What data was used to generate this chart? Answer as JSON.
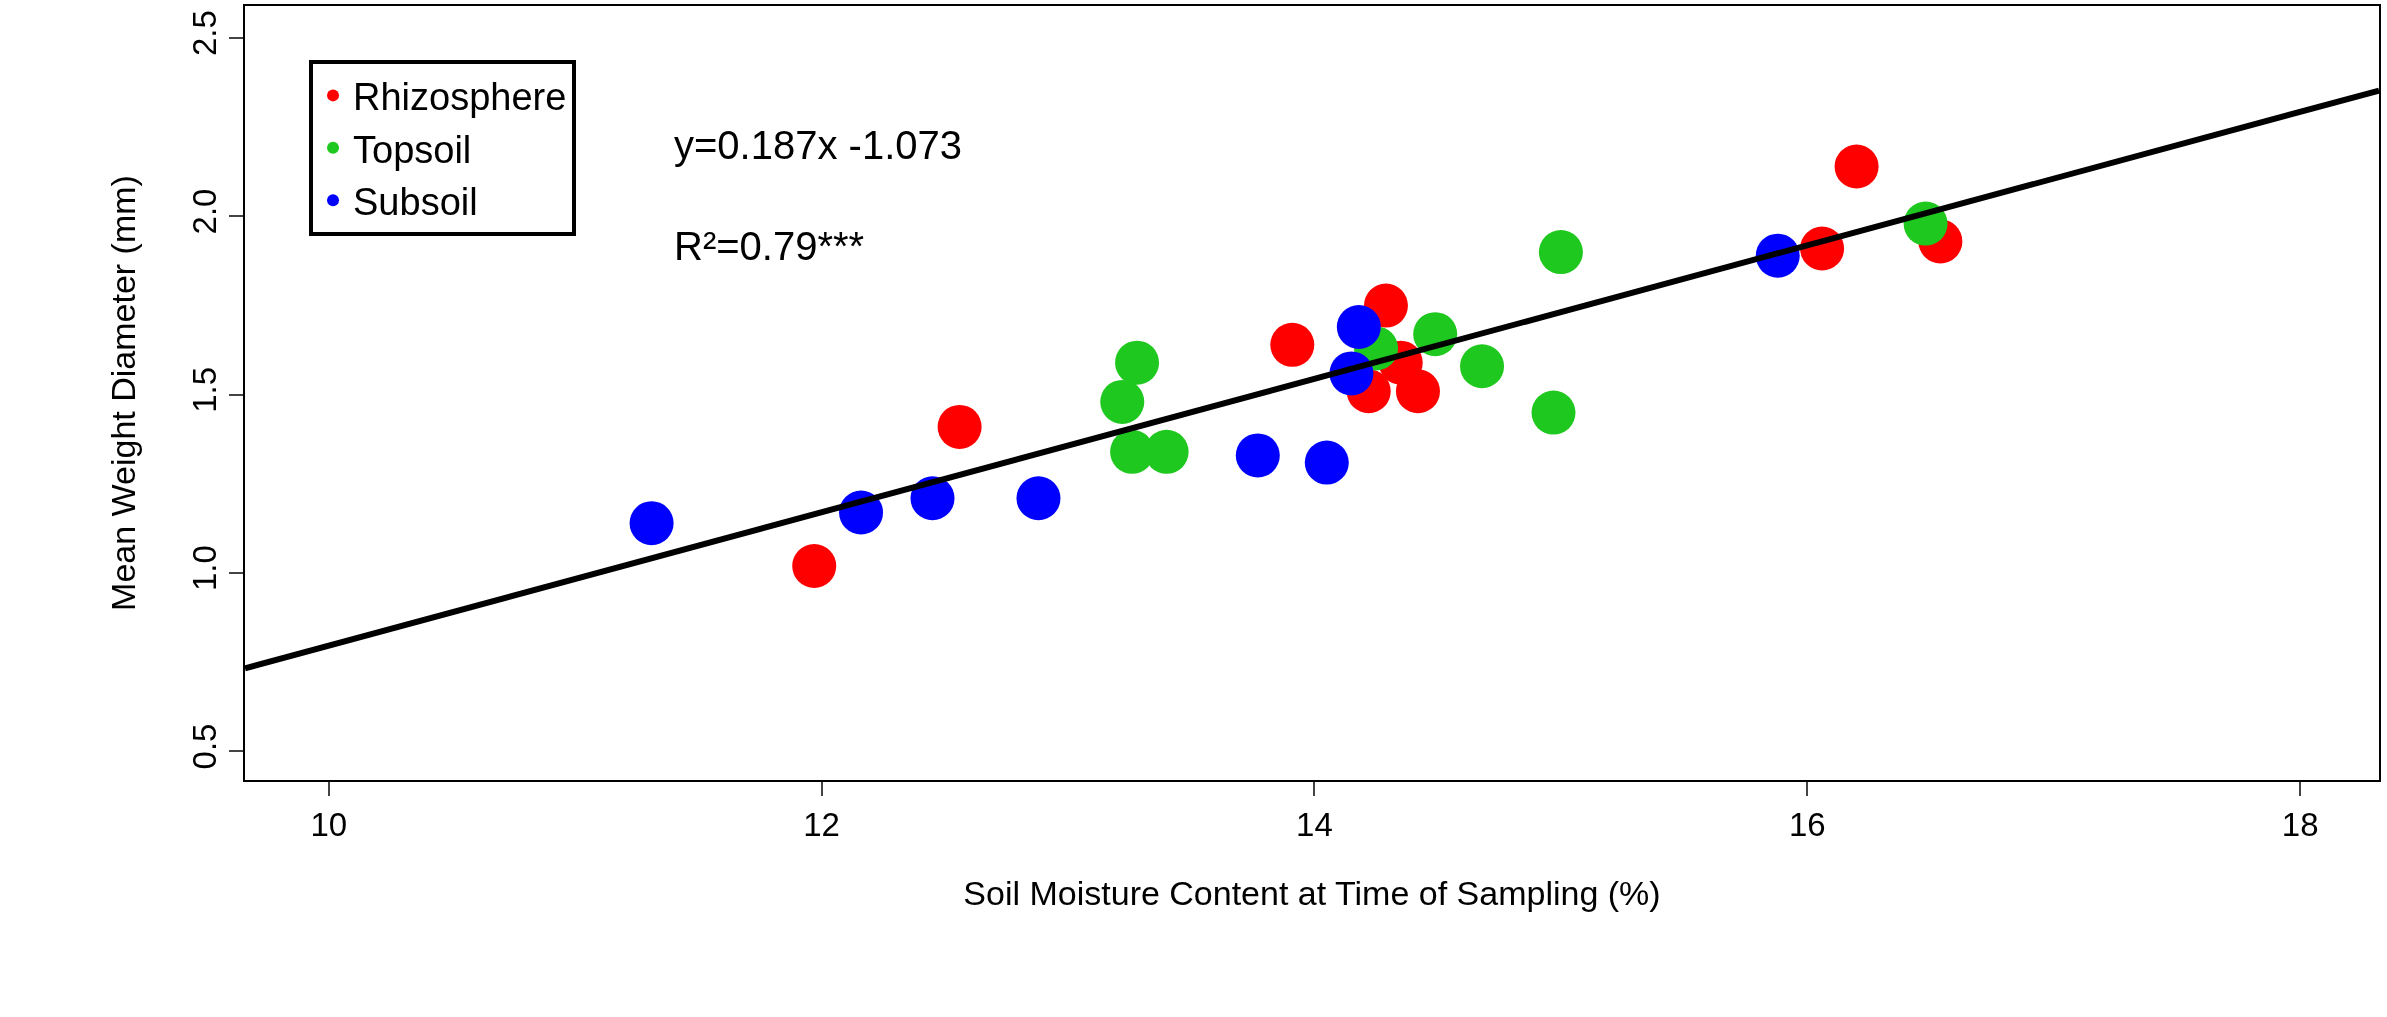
{
  "chart_data": {
    "type": "scatter",
    "xlabel": "Soil Moisture Content at Time of Sampling (%)",
    "ylabel": "Mean Weight Diameter (mm)",
    "annotations": [
      "y=0.187x -1.073",
      "R²=0.79***"
    ],
    "xlim": [
      9.66,
      18.32
    ],
    "xticks": [
      10,
      12,
      14,
      16,
      18
    ],
    "ylim": [
      0.42,
      2.59
    ],
    "yticks": [
      {
        "value": 0.5,
        "label": "0.5"
      },
      {
        "value": 1.0,
        "label": "1.0"
      },
      {
        "value": 1.5,
        "label": "1.5"
      },
      {
        "value": 2.0,
        "label": "2.0"
      },
      {
        "value": 2.5,
        "label": "2.5"
      }
    ],
    "grid": false,
    "legend": "top left",
    "series": [
      {
        "name": "Rhizosphere",
        "color": "#ff0000",
        "marker": "circle",
        "x": [
          11.97,
          12.56,
          13.91,
          14.29,
          14.35,
          14.22,
          14.42,
          16.06,
          16.2,
          16.54
        ],
        "values": [
          1.02,
          1.41,
          1.64,
          1.75,
          1.59,
          1.51,
          1.51,
          1.91,
          2.14,
          1.93
        ]
      },
      {
        "name": "Topsoil",
        "color": "#1ec81e",
        "marker": "circle",
        "x": [
          13.28,
          13.22,
          13.26,
          13.4,
          14.25,
          14.49,
          14.68,
          14.97,
          15.0,
          16.48
        ],
        "values": [
          1.59,
          1.48,
          1.34,
          1.34,
          1.63,
          1.67,
          1.58,
          1.45,
          1.9,
          1.98
        ]
      },
      {
        "name": "Subsoil",
        "color": "#0000ff",
        "marker": "circle",
        "x": [
          11.31,
          12.16,
          12.45,
          12.88,
          13.77,
          14.05,
          14.18,
          14.15,
          15.88
        ],
        "values": [
          1.14,
          1.17,
          1.21,
          1.21,
          1.33,
          1.31,
          1.69,
          1.56,
          1.89
        ]
      },
      {
        "type": "line",
        "color": "#000000",
        "line_style": "solid",
        "marker": "none",
        "x": [
          9.66,
          18.32
        ],
        "values": [
          0.733,
          2.353
        ]
      }
    ]
  }
}
